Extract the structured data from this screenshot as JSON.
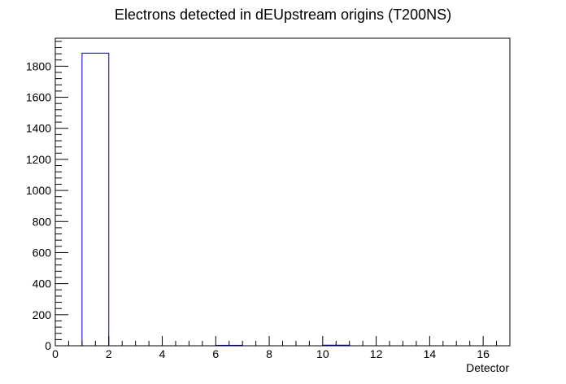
{
  "chart_data": {
    "type": "bar",
    "title": "Electrons detected in dEUpstream origins (T200NS)",
    "xlabel": "Detector",
    "ylabel": "",
    "xlim": [
      0,
      17
    ],
    "ylim": [
      0,
      1980
    ],
    "bin_edges": [
      0,
      1,
      2,
      3,
      4,
      5,
      6,
      7,
      8,
      9,
      10,
      11,
      12,
      13,
      14,
      15,
      16,
      17
    ],
    "values": [
      0,
      1884,
      0,
      0,
      0,
      0,
      3,
      0,
      0,
      0,
      4,
      0,
      0,
      0,
      0,
      0,
      0
    ],
    "xticks": [
      0,
      2,
      4,
      6,
      8,
      10,
      12,
      14,
      16
    ],
    "yticks": [
      0,
      200,
      400,
      600,
      800,
      1000,
      1200,
      1400,
      1600,
      1800
    ],
    "bar_style": "outline",
    "line_color": "#0000cc",
    "grid": false
  }
}
